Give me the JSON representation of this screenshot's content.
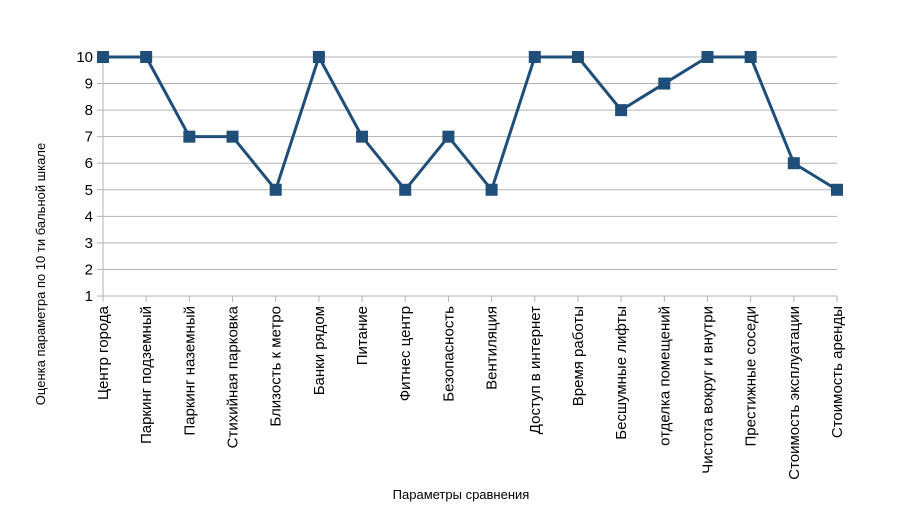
{
  "chart_data": {
    "type": "line",
    "title": "",
    "xlabel": "Параметры сравнения",
    "ylabel": "Оценка параметра по 10 ти бальной шкале",
    "ylim": [
      1,
      10
    ],
    "yticks": [
      1,
      2,
      3,
      4,
      5,
      6,
      7,
      8,
      9,
      10
    ],
    "grid": true,
    "legend": "none",
    "categories": [
      "Центр города",
      "Паркинг подземный",
      "Паркинг наземный",
      "Стихийная парковка",
      "Близость к метро",
      "Банки рядом",
      "Питание",
      "Фитнес центр",
      "Безопасность",
      "Вентиляция",
      "Доступ в интернет",
      "Время работы",
      "Бесшумные лифты",
      "отделка помещений",
      "Чистота вокруг и внутри",
      "Престижные соседи",
      "Стоимость эксплуатации",
      "Стоимость аренды"
    ],
    "series": [
      {
        "values": [
          10,
          10,
          7,
          7,
          5,
          10,
          7,
          5,
          7,
          5,
          10,
          10,
          8,
          9,
          10,
          10,
          6,
          5
        ],
        "color": "#1f4e79",
        "marker": "square"
      }
    ]
  }
}
